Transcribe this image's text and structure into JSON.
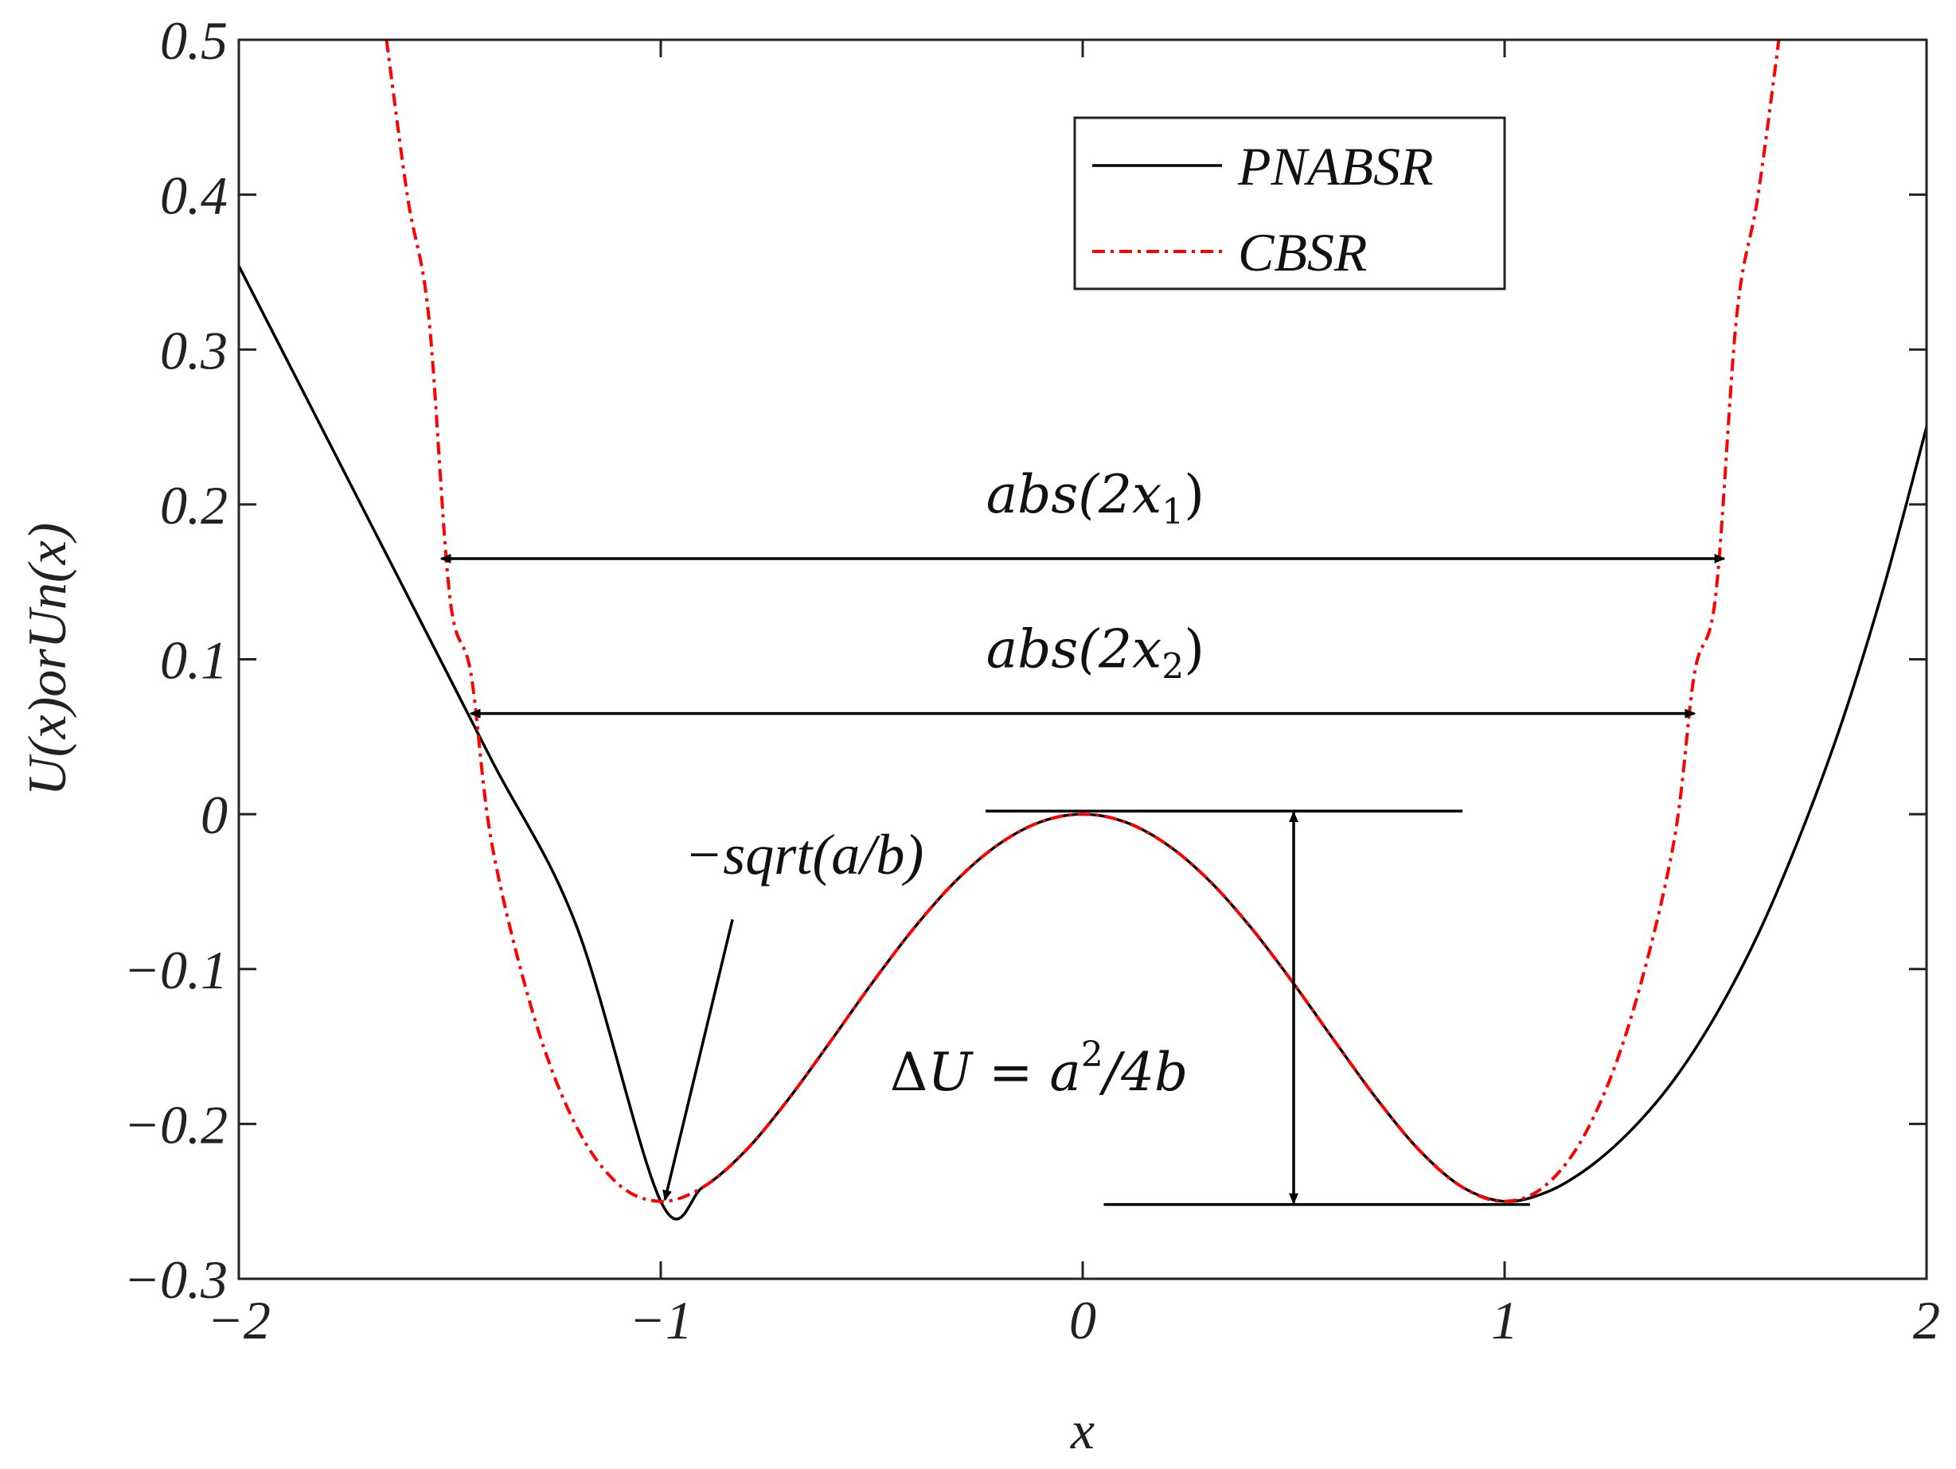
{
  "chart_data": {
    "type": "line",
    "xlabel": "x",
    "ylabel": "U(x)orUn(x)",
    "xlim": [
      -2,
      2
    ],
    "ylim": [
      -0.3,
      0.5
    ],
    "x_ticks": [
      -2,
      -1,
      0,
      1,
      2
    ],
    "x_tick_labels": [
      "−2",
      "−1",
      "0",
      "1",
      "2"
    ],
    "y_ticks": [
      -0.3,
      -0.2,
      -0.1,
      0,
      0.1,
      0.2,
      0.3,
      0.4,
      0.5
    ],
    "y_tick_labels": [
      "−0.3",
      "−0.2",
      "−0.1",
      "0",
      "0.1",
      "0.2",
      "0.3",
      "0.4",
      "0.5"
    ],
    "grid": false,
    "legend_position": "top-right",
    "series": [
      {
        "name": "PNABSR",
        "color": "#000000",
        "style": "solid",
        "points": [
          {
            "x": -2.0,
            "y": 0.354
          },
          {
            "x": -1.8,
            "y": 0.2475
          },
          {
            "x": -1.6,
            "y": 0.141
          },
          {
            "x": -1.4,
            "y": 0.0345
          },
          {
            "x": -1.2,
            "y": -0.072
          },
          {
            "x": -1.0,
            "y": -0.25
          },
          {
            "x": -0.9,
            "y": -0.2408
          },
          {
            "x": -0.8,
            "y": -0.2176
          },
          {
            "x": -0.7,
            "y": -0.1849
          },
          {
            "x": -0.6,
            "y": -0.1476
          },
          {
            "x": -0.5,
            "y": -0.1094
          },
          {
            "x": -0.4,
            "y": -0.0736
          },
          {
            "x": -0.3,
            "y": -0.0429
          },
          {
            "x": -0.2,
            "y": -0.0196
          },
          {
            "x": -0.1,
            "y": -0.005
          },
          {
            "x": 0.0,
            "y": 0.0
          },
          {
            "x": 0.1,
            "y": -0.005
          },
          {
            "x": 0.2,
            "y": -0.0196
          },
          {
            "x": 0.3,
            "y": -0.0429
          },
          {
            "x": 0.4,
            "y": -0.0736
          },
          {
            "x": 0.5,
            "y": -0.1094
          },
          {
            "x": 0.6,
            "y": -0.1476
          },
          {
            "x": 0.7,
            "y": -0.1849
          },
          {
            "x": 0.8,
            "y": -0.2176
          },
          {
            "x": 0.9,
            "y": -0.2408
          },
          {
            "x": 1.0,
            "y": -0.25
          },
          {
            "x": 1.1,
            "y": -0.244
          },
          {
            "x": 1.2,
            "y": -0.228
          },
          {
            "x": 1.3,
            "y": -0.204
          },
          {
            "x": 1.4,
            "y": -0.172
          },
          {
            "x": 1.5,
            "y": -0.13
          },
          {
            "x": 1.6,
            "y": -0.078
          },
          {
            "x": 1.7,
            "y": -0.014
          },
          {
            "x": 1.8,
            "y": 0.06
          },
          {
            "x": 1.9,
            "y": 0.148
          },
          {
            "x": 2.0,
            "y": 0.25
          }
        ]
      },
      {
        "name": "CBSR",
        "color": "#ff0000",
        "style": "dashdot",
        "points": [
          {
            "x": -1.65,
            "y": 0.5
          },
          {
            "x": -1.6,
            "y": 0.3984
          },
          {
            "x": -1.55,
            "y": 0.3215
          },
          {
            "x": -1.5,
            "y": 0.1406
          },
          {
            "x": -1.45,
            "y": 0.0909
          },
          {
            "x": -1.4,
            "y": -0.0196
          },
          {
            "x": -1.3,
            "y": -0.1311
          },
          {
            "x": -1.2,
            "y": -0.2016
          },
          {
            "x": -1.1,
            "y": -0.239
          },
          {
            "x": -1.0,
            "y": -0.25
          },
          {
            "x": -0.9,
            "y": -0.2408
          },
          {
            "x": -0.8,
            "y": -0.2176
          },
          {
            "x": -0.7,
            "y": -0.1849
          },
          {
            "x": -0.6,
            "y": -0.1476
          },
          {
            "x": -0.5,
            "y": -0.1094
          },
          {
            "x": -0.4,
            "y": -0.0736
          },
          {
            "x": -0.3,
            "y": -0.0429
          },
          {
            "x": -0.2,
            "y": -0.0196
          },
          {
            "x": -0.1,
            "y": -0.005
          },
          {
            "x": 0.0,
            "y": 0.0
          },
          {
            "x": 0.1,
            "y": -0.005
          },
          {
            "x": 0.2,
            "y": -0.0196
          },
          {
            "x": 0.3,
            "y": -0.0429
          },
          {
            "x": 0.4,
            "y": -0.0736
          },
          {
            "x": 0.5,
            "y": -0.1094
          },
          {
            "x": 0.6,
            "y": -0.1476
          },
          {
            "x": 0.7,
            "y": -0.1849
          },
          {
            "x": 0.8,
            "y": -0.2176
          },
          {
            "x": 0.9,
            "y": -0.2408
          },
          {
            "x": 1.0,
            "y": -0.25
          },
          {
            "x": 1.1,
            "y": -0.239
          },
          {
            "x": 1.2,
            "y": -0.2016
          },
          {
            "x": 1.3,
            "y": -0.1311
          },
          {
            "x": 1.4,
            "y": -0.0196
          },
          {
            "x": 1.45,
            "y": 0.0909
          },
          {
            "x": 1.5,
            "y": 0.1406
          },
          {
            "x": 1.55,
            "y": 0.3215
          },
          {
            "x": 1.6,
            "y": 0.3984
          },
          {
            "x": 1.65,
            "y": 0.5
          }
        ]
      }
    ],
    "annotations": {
      "abs1": {
        "text_main": "abs(2x",
        "text_sub": "1",
        "text_close": ")",
        "x_from": -1.52,
        "x_to": 1.52,
        "y": 0.165
      },
      "abs2": {
        "text_main": "abs(2x",
        "text_sub": "2",
        "text_close": ")",
        "x_from": -1.45,
        "x_to": 1.45,
        "y": 0.065
      },
      "sqrt_label": {
        "text": "−sqrt(a/b)",
        "arrow_from_x": -0.83,
        "arrow_from_y": -0.068,
        "arrow_to_x": -0.99,
        "arrow_to_y": -0.249
      },
      "delta_u": {
        "text_prefix": "Δ",
        "text_u": "U",
        "text_eq": " = ",
        "text_a": "a",
        "text_sup": "2",
        "text_rest": "/4b",
        "line_top_y": 0.002,
        "line_top_x_from": -0.23,
        "line_top_x_to": 0.9,
        "line_bottom_y": -0.252,
        "line_bottom_x_from": 0.05,
        "line_bottom_x_to": 1.06,
        "arrow_x": 0.5
      }
    }
  }
}
